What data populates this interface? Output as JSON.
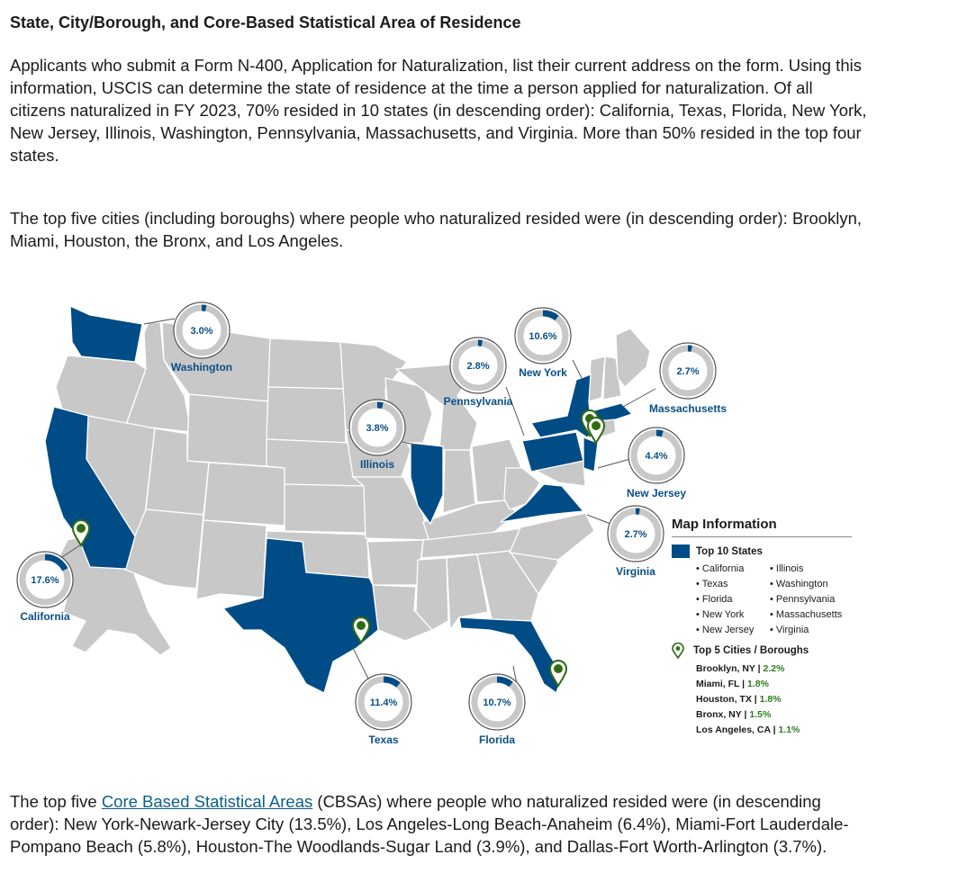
{
  "heading": "State, City/Borough, and Core-Based Statistical Area of Residence",
  "paragraphs": {
    "p1": "Applicants who submit a Form N-400, Application for Naturalization, list their current address on the form. Using this information, USCIS can determine the state of residence at the time a person applied for naturalization. Of all citizens naturalized in FY 2023, 70% resided in 10 states (in descending order): California, Texas, Florida, New York, New Jersey, Illinois, Washington, Pennsylvania, Massachusetts, and Virginia. More than 50% resided in the top four states.",
    "p2": "The top five cities (including boroughs) where people who naturalized resided were (in descending order): Brooklyn, Miami, Houston, the Bronx, and Los Angeles.",
    "p3_before": "The top five ",
    "p3_link": "Core Based Statistical Areas",
    "p3_after": " (CBSAs) where people who naturalized resided were (in descending order): New York-Newark-Jersey City (13.5%), Los Angeles-Long Beach-Anaheim (6.4%), Miami-Fort Lauderdale-Pompano Beach (5.8%), Houston-The Woodlands-Sugar Land (3.9%), and Dallas-Fort Worth-Arlington (3.7%)."
  },
  "colors": {
    "top_state": "#004c86",
    "other_state": "#c8c8c8",
    "pin": "#2e6b12",
    "donut_track": "#c8c8c8",
    "donut_fill": "#004c86",
    "label": "#0a4f86"
  },
  "states": [
    {
      "name": "California",
      "pct": 17.6,
      "label": "17.6%"
    },
    {
      "name": "Texas",
      "pct": 11.4,
      "label": "11.4%"
    },
    {
      "name": "Florida",
      "pct": 10.7,
      "label": "10.7%"
    },
    {
      "name": "New York",
      "pct": 10.6,
      "label": "10.6%"
    },
    {
      "name": "New Jersey",
      "pct": 4.4,
      "label": "4.4%"
    },
    {
      "name": "Illinois",
      "pct": 3.8,
      "label": "3.8%"
    },
    {
      "name": "Washington",
      "pct": 3.0,
      "label": "3.0%"
    },
    {
      "name": "Pennsylvania",
      "pct": 2.8,
      "label": "2.8%"
    },
    {
      "name": "Massachusetts",
      "pct": 2.7,
      "label": "2.7%"
    },
    {
      "name": "Virginia",
      "pct": 2.7,
      "label": "2.7%"
    }
  ],
  "legend": {
    "title": "Map Information",
    "top_states_label": "Top 10 States",
    "top_states_col1": [
      "• California",
      "• Texas",
      "• Florida",
      "• New York",
      "• New Jersey"
    ],
    "top_states_col2": [
      "• Illinois",
      "• Washington",
      "• Pennsylvania",
      "• Massachusetts",
      "• Virginia"
    ],
    "cities_label": "Top 5 Cities / Boroughs",
    "cities": [
      {
        "name": "Brooklyn, NY",
        "sep": " | ",
        "pct": "2.2%"
      },
      {
        "name": "Miami, FL",
        "sep": " | ",
        "pct": "1.8%"
      },
      {
        "name": "Houston, TX ",
        "sep": " | ",
        "pct": "1.8%"
      },
      {
        "name": "Bronx, NY",
        "sep": " | ",
        "pct": "1.5%"
      },
      {
        "name": "Los Angeles, CA",
        "sep": " | ",
        "pct": "1.1%"
      }
    ]
  }
}
